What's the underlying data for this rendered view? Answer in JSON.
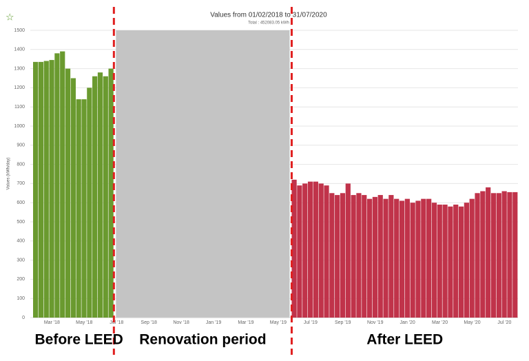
{
  "chart_data": {
    "type": "bar",
    "title": "Values from 01/02/2018 to 31/07/2020",
    "subtitle": "Total : 452083.05 kWh",
    "y_label": "Values (kWh/day)",
    "annotations": [
      "Before LEED",
      "Renovation period",
      "After LEED"
    ],
    "categories": [
      null,
      null,
      null,
      "Mar '18",
      null,
      null,
      null,
      null,
      null,
      "May '18",
      null,
      null,
      null,
      null,
      null,
      "Jul '18",
      null,
      null,
      null,
      null,
      null,
      "Sep '18",
      null,
      null,
      null,
      null,
      null,
      "Nov '18",
      null,
      null,
      null,
      null,
      null,
      "Jan '19",
      null,
      null,
      null,
      null,
      null,
      "Mar '19",
      null,
      null,
      null,
      null,
      null,
      "May '19",
      null,
      null,
      null,
      null,
      null,
      "Jul '19",
      null,
      null,
      null,
      null,
      null,
      "Sep '19",
      null,
      null,
      null,
      null,
      null,
      "Nov '19",
      null,
      null,
      null,
      null,
      null,
      "Jan '20",
      null,
      null,
      null,
      null,
      null,
      "Mar '20",
      null,
      null,
      null,
      null,
      null,
      "May '20",
      null,
      null,
      null,
      null,
      null,
      "Jul '20",
      null,
      null
    ],
    "series": [
      {
        "color": "#6a9a2f",
        "values": [
          1335,
          1335,
          1340,
          1345,
          1380,
          1390,
          1300,
          1250,
          1140,
          1140,
          1200,
          1260,
          1280,
          1260,
          1300,
          null,
          null,
          null,
          null,
          null,
          null,
          null,
          null,
          null,
          null,
          null,
          null,
          null,
          null,
          null,
          null,
          null,
          null,
          null,
          null,
          null,
          null,
          null,
          null,
          null,
          null,
          null,
          null,
          null,
          null,
          null,
          null,
          null,
          null,
          null,
          null,
          null,
          null,
          null,
          null,
          null,
          null,
          null,
          null,
          null,
          null,
          null,
          null,
          null,
          null,
          null,
          null,
          null,
          null,
          null,
          null,
          null,
          null,
          null,
          null,
          null,
          null,
          null,
          null,
          null,
          null,
          null,
          null,
          null,
          null,
          null,
          null,
          null,
          null,
          null
        ]
      },
      {
        "color": "#c0334a",
        "values": [
          null,
          null,
          null,
          null,
          null,
          null,
          null,
          null,
          null,
          null,
          null,
          null,
          null,
          null,
          null,
          null,
          null,
          null,
          null,
          null,
          null,
          null,
          null,
          null,
          null,
          null,
          null,
          null,
          null,
          null,
          null,
          null,
          null,
          null,
          null,
          null,
          null,
          null,
          null,
          null,
          null,
          null,
          null,
          null,
          null,
          null,
          null,
          null,
          720,
          690,
          700,
          710,
          710,
          700,
          690,
          650,
          640,
          650,
          700,
          640,
          650,
          640,
          620,
          630,
          640,
          620,
          640,
          620,
          610,
          620,
          600,
          610,
          620,
          620,
          600,
          590,
          590,
          580,
          590,
          580,
          600,
          620,
          650,
          660,
          680,
          650,
          650,
          660,
          655,
          655
        ]
      }
    ],
    "ylim": [
      0,
      1500
    ],
    "yticks": [
      0,
      100,
      200,
      300,
      400,
      500,
      600,
      700,
      800,
      900,
      1000,
      1100,
      1200,
      1300,
      1400,
      1500
    ],
    "grid": true
  }
}
